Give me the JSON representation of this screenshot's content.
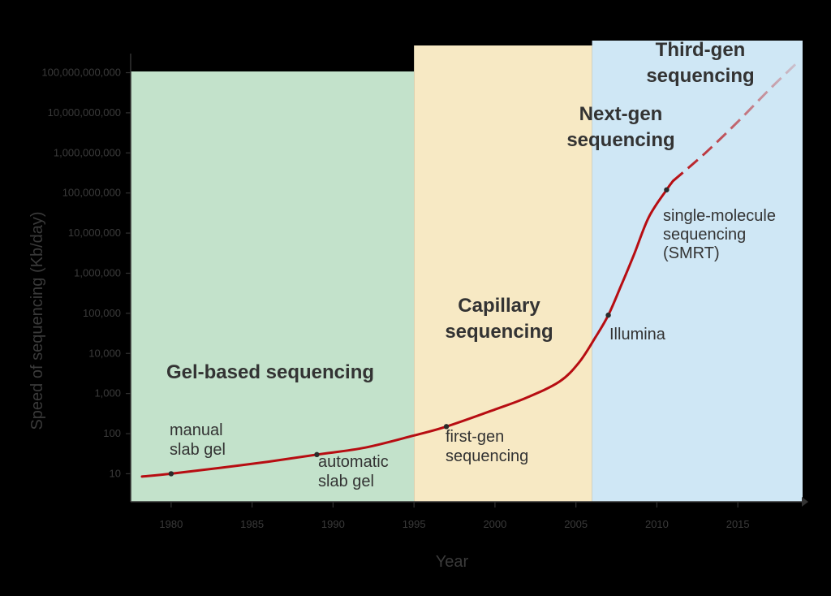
{
  "chart_data": {
    "type": "line",
    "title": "",
    "xlabel": "Year",
    "ylabel": "Speed of sequencing (Kb/day)",
    "xlim": [
      1977.5,
      2019
    ],
    "ylim_log10": [
      0.3,
      11.8
    ],
    "y_scale": "log",
    "grid": false,
    "x_ticks": [
      1980,
      1985,
      1990,
      1995,
      2000,
      2005,
      2010,
      2015
    ],
    "x_tick_labels": [
      "1980",
      "1985",
      "1990",
      "1995",
      "2000",
      "2005",
      "2010",
      "2015"
    ],
    "y_ticks": [
      10,
      100,
      1000,
      10000,
      100000,
      1000000,
      10000000,
      100000000,
      1000000000,
      10000000000,
      100000000000
    ],
    "y_tick_labels": [
      "10",
      "100",
      "1,000",
      "10,000",
      "100,000",
      "1,000,000",
      "10,000,000",
      "100,000,000",
      "1,000,000,000",
      "10,000,000,000",
      "100,000,000,000"
    ],
    "eras": [
      {
        "name": "Gel-based sequencing",
        "lines": [
          "Gel-based sequencing"
        ],
        "x_start": 1977.5,
        "x_end": 1995,
        "color": "#c3e2cb"
      },
      {
        "name": "Capillary sequencing",
        "lines": [
          "Capillary",
          "sequencing"
        ],
        "x_start": 1995,
        "x_end": 2006,
        "color": "#f7e9c4"
      },
      {
        "name": "Next-gen sequencing",
        "lines": [
          "Next-gen",
          "sequencing"
        ],
        "x_start": 2006,
        "x_end": 2019,
        "color": "#cfe7f5"
      }
    ],
    "third_gen_label": {
      "lines": [
        "Third-gen",
        "sequencing"
      ]
    },
    "series": [
      {
        "color": "#b70d12",
        "points": [
          [
            1978.2,
            8.5
          ],
          [
            1980,
            10
          ],
          [
            1983,
            14
          ],
          [
            1986,
            20
          ],
          [
            1989,
            30
          ],
          [
            1992,
            45
          ],
          [
            1995,
            90
          ],
          [
            1997,
            150
          ],
          [
            2000,
            400
          ],
          [
            2002,
            800
          ],
          [
            2004,
            2000
          ],
          [
            2005.2,
            6000
          ],
          [
            2006.2,
            25000
          ],
          [
            2007,
            90000
          ],
          [
            2007.8,
            500000
          ],
          [
            2008.6,
            3000000
          ],
          [
            2009.5,
            25000000
          ],
          [
            2010.6,
            120000000
          ],
          [
            2011,
            200000000
          ]
        ],
        "projection": [
          [
            2011,
            200000000
          ],
          [
            2013,
            1000000000
          ],
          [
            2015,
            6000000000
          ],
          [
            2017,
            40000000000
          ],
          [
            2018.8,
            200000000000
          ]
        ]
      }
    ],
    "annotations": [
      {
        "lines": [
          "manual",
          "slab gel"
        ],
        "x": 1980,
        "y": 10
      },
      {
        "lines": [
          "automatic",
          "slab gel"
        ],
        "x": 1989,
        "y": 30
      },
      {
        "lines": [
          "first-gen",
          "sequencing"
        ],
        "x": 1997,
        "y": 150
      },
      {
        "lines": [
          "Illumina"
        ],
        "x": 2007,
        "y": 90000
      },
      {
        "lines": [
          "single-molecule",
          "sequencing",
          "(SMRT)"
        ],
        "x": 2010.6,
        "y": 120000000
      }
    ]
  }
}
